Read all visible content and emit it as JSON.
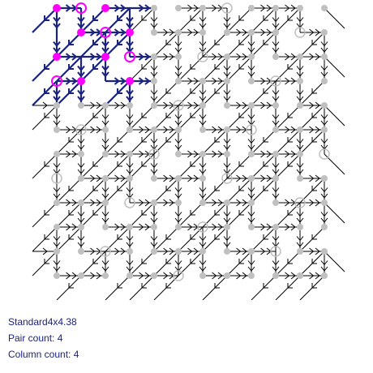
{
  "board": {
    "rows": 12,
    "cols": 12,
    "highlight_rows": 4,
    "highlight_cols": 4,
    "colors": {
      "grid_line": "#000000",
      "grid_node": "#c0c0c0",
      "active_line": "#1a237e",
      "active_node": "#ff00ff"
    },
    "highlighted_cells": [
      {
        "row": 0,
        "col": 0,
        "type": "dot"
      },
      {
        "row": 0,
        "col": 1,
        "type": "ring"
      },
      {
        "row": 0,
        "col": 2,
        "type": "dot"
      },
      {
        "row": 1,
        "col": 1,
        "type": "dot"
      },
      {
        "row": 1,
        "col": 2,
        "type": "ring"
      },
      {
        "row": 1,
        "col": 3,
        "type": "dot"
      },
      {
        "row": 2,
        "col": 0,
        "type": "dot"
      },
      {
        "row": 2,
        "col": 2,
        "type": "dot"
      },
      {
        "row": 2,
        "col": 3,
        "type": "ring"
      },
      {
        "row": 3,
        "col": 0,
        "type": "ring"
      },
      {
        "row": 3,
        "col": 1,
        "type": "dot"
      },
      {
        "row": 3,
        "col": 3,
        "type": "dot"
      }
    ]
  },
  "info": {
    "title": "Standard4x4.38",
    "pair_count": "Pair count: 4",
    "column_count": "Column count: 4"
  }
}
